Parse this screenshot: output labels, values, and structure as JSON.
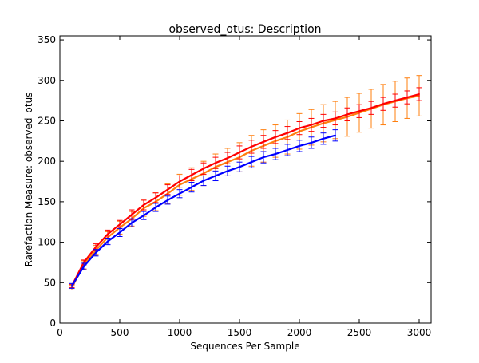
{
  "chart_data": {
    "type": "line",
    "title": "observed_otus: Description",
    "xlabel": "Sequences Per Sample",
    "ylabel": "Rarefaction Measure: observed_otus",
    "xlim": [
      0,
      3100
    ],
    "ylim": [
      0,
      355
    ],
    "x_ticks": [
      0,
      500,
      1000,
      1500,
      2000,
      2500,
      3000
    ],
    "y_ticks": [
      0,
      50,
      100,
      150,
      200,
      250,
      300,
      350
    ],
    "grid": false,
    "legend": "none",
    "series": [
      {
        "color": "#ff7f0e",
        "x": [
          100,
          200,
          300,
          400,
          500,
          600,
          700,
          800,
          900,
          1000,
          1100,
          1200,
          1300,
          1400,
          1500,
          1600,
          1700,
          1800,
          1900,
          2000,
          2100,
          2200,
          2300,
          2400,
          2500,
          2600,
          2700,
          2800,
          2900,
          3000
        ],
        "y": [
          44,
          72,
          90,
          106,
          118,
          129,
          142,
          150,
          160,
          171,
          178,
          185,
          193,
          199,
          205,
          213,
          219,
          225,
          230,
          237,
          242,
          247,
          251,
          255,
          260,
          265,
          270,
          274,
          278,
          281
        ],
        "err": [
          3,
          5,
          6,
          7,
          8,
          9,
          10,
          11,
          12,
          13,
          14,
          15,
          16,
          17,
          18,
          19,
          20,
          20,
          21,
          22,
          22,
          23,
          23,
          24,
          24,
          24,
          25,
          25,
          25,
          25
        ]
      },
      {
        "color": "#ff0000",
        "x": [
          100,
          200,
          300,
          400,
          500,
          600,
          700,
          800,
          900,
          1000,
          1100,
          1200,
          1300,
          1400,
          1500,
          1600,
          1700,
          1800,
          1900,
          2000,
          2100,
          2200,
          2300,
          2400,
          2500,
          2600,
          2700,
          2800,
          2900,
          3000
        ],
        "y": [
          46,
          75,
          94,
          110,
          122,
          134,
          146,
          155,
          165,
          175,
          183,
          191,
          198,
          204,
          211,
          218,
          224,
          230,
          235,
          241,
          245,
          250,
          253,
          258,
          262,
          266,
          271,
          275,
          279,
          283
        ],
        "err": [
          2,
          3,
          4,
          5,
          5,
          6,
          6,
          6,
          6,
          7,
          7,
          7,
          7,
          7,
          8,
          8,
          8,
          8,
          8,
          8,
          8,
          8,
          8,
          8,
          8,
          8,
          8,
          8,
          8,
          8
        ]
      },
      {
        "color": "#0000ff",
        "x": [
          100,
          200,
          300,
          400,
          500,
          600,
          700,
          800,
          900,
          1000,
          1100,
          1200,
          1300,
          1400,
          1500,
          1600,
          1700,
          1800,
          1900,
          2000,
          2100,
          2200,
          2300
        ],
        "y": [
          46,
          70,
          87,
          101,
          112,
          124,
          133,
          143,
          152,
          160,
          168,
          176,
          182,
          188,
          193,
          199,
          205,
          209,
          214,
          219,
          223,
          228,
          232
        ],
        "err": [
          3,
          4,
          4,
          4,
          5,
          5,
          5,
          5,
          5,
          5,
          6,
          6,
          6,
          6,
          6,
          7,
          7,
          7,
          7,
          7,
          7,
          7,
          7
        ]
      }
    ]
  }
}
